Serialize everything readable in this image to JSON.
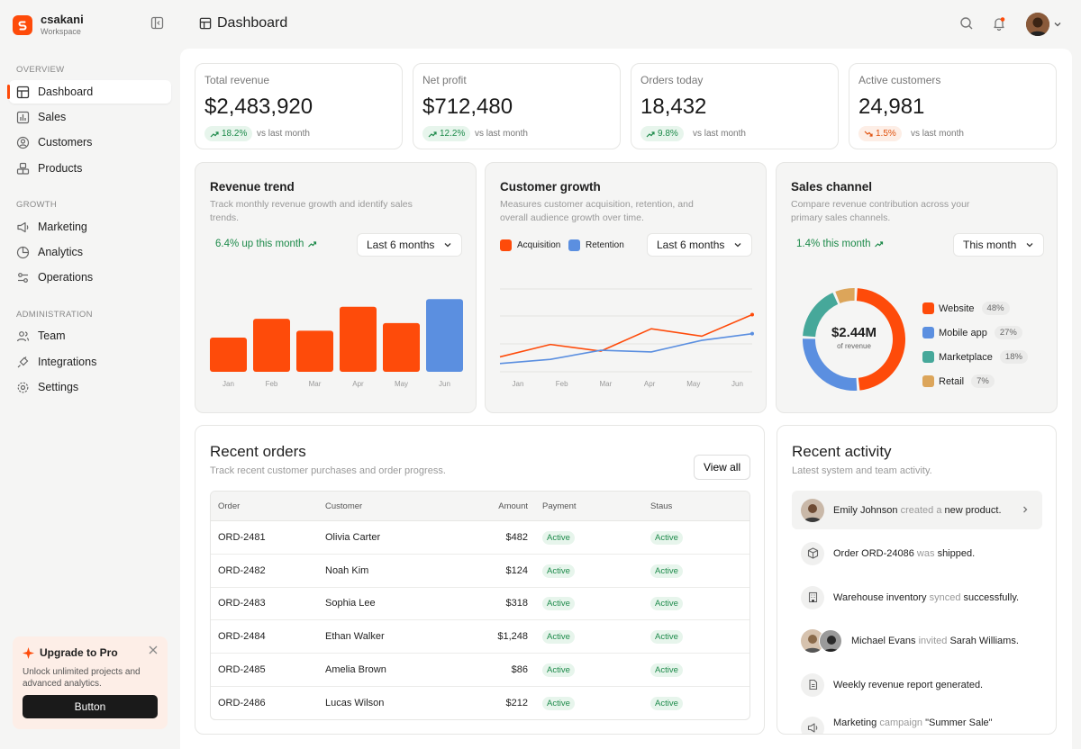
{
  "brand": {
    "name": "csakani",
    "sub": "Workspace"
  },
  "sidebar": {
    "sections": [
      "OVERVIEW",
      "GROWTH",
      "ADMINISTRATION"
    ],
    "items": [
      {
        "label": "Dashboard",
        "icon": "dashboard-icon"
      },
      {
        "label": "Sales",
        "icon": "bar-chart-icon"
      },
      {
        "label": "Customers",
        "icon": "user-circle-icon"
      },
      {
        "label": "Products",
        "icon": "boxes-icon"
      },
      {
        "label": "Marketing",
        "icon": "megaphone-icon"
      },
      {
        "label": "Analytics",
        "icon": "pie-icon"
      },
      {
        "label": "Operations",
        "icon": "sliders-icon"
      },
      {
        "label": "Team",
        "icon": "users-icon"
      },
      {
        "label": "Integrations",
        "icon": "plug-icon"
      },
      {
        "label": "Settings",
        "icon": "gear-icon"
      }
    ]
  },
  "upgrade": {
    "title": "Upgrade to Pro",
    "desc": "Unlock unlimited projects and advanced analytics.",
    "button": "Button"
  },
  "header": {
    "title": "Dashboard"
  },
  "kpis": [
    {
      "label": "Total revenue",
      "value": "$2,483,920",
      "change": "18.2%",
      "trend": "up",
      "vs": "vs last month"
    },
    {
      "label": "Net profit",
      "value": "$712,480",
      "change": "12.2%",
      "trend": "up",
      "vs": "vs last month"
    },
    {
      "label": "Orders today",
      "value": "18,432",
      "change": "9.8%",
      "trend": "up",
      "vs": "vs last month"
    },
    {
      "label": "Active customers",
      "value": "24,981",
      "change": "1.5%",
      "trend": "down",
      "vs": "vs last month"
    }
  ],
  "revenue": {
    "title": "Revenue trend",
    "desc": "Track monthly revenue growth and identify sales trends.",
    "stat": "6.4% up this month",
    "range": "Last 6 months"
  },
  "growth": {
    "title": "Customer growth",
    "desc": "Measures customer acquisition, retention, and overall audience growth over time.",
    "range": "Last 6 months"
  },
  "channel": {
    "title": "Sales channel",
    "desc": "Compare revenue contribution across your primary sales channels.",
    "stat": "1.4% this month",
    "range": "This month",
    "center_value": "$2.44M",
    "center_label": "of revenue"
  },
  "chart_data": [
    {
      "type": "bar",
      "categories": [
        "Jan",
        "Feb",
        "Mar",
        "Apr",
        "May",
        "Jun"
      ],
      "values": [
        40,
        62,
        48,
        76,
        57,
        85
      ],
      "colors": [
        "#fe4b0a",
        "#fe4b0a",
        "#fe4b0a",
        "#fe4b0a",
        "#fe4b0a",
        "#5b8fe0"
      ],
      "ylim": [
        0,
        100
      ]
    },
    {
      "type": "line",
      "x": [
        "Jan",
        "Feb",
        "Mar",
        "Apr",
        "May",
        "Jun"
      ],
      "series": [
        {
          "name": "Acquisition",
          "color": "#fe4b0a",
          "values": [
            18,
            33,
            25,
            52,
            43,
            69
          ]
        },
        {
          "name": "Retention",
          "color": "#5b8fe0",
          "values": [
            10,
            15,
            26,
            24,
            38,
            46
          ]
        }
      ],
      "ylim": [
        0,
        100
      ]
    },
    {
      "type": "pie",
      "labels": [
        "Website",
        "Mobile app",
        "Marketplace",
        "Retail"
      ],
      "values": [
        48,
        27,
        18,
        7
      ],
      "colors": [
        "#fe4b0a",
        "#5b8fe0",
        "#46a89a",
        "#dca55a"
      ]
    }
  ],
  "orders": {
    "title": "Recent orders",
    "desc": "Track recent customer purchases and order progress.",
    "view_all": "View all",
    "columns": [
      "Order",
      "Customer",
      "Amount",
      "Payment",
      "Staus"
    ],
    "rows": [
      {
        "order": "ORD-2481",
        "customer": "Olivia Carter",
        "amount": "$482",
        "payment": "Active",
        "status": "Active"
      },
      {
        "order": "ORD-2482",
        "customer": "Noah Kim",
        "amount": "$124",
        "payment": "Active",
        "status": "Active"
      },
      {
        "order": "ORD-2483",
        "customer": "Sophia Lee",
        "amount": "$318",
        "payment": "Active",
        "status": "Active"
      },
      {
        "order": "ORD-2484",
        "customer": "Ethan Walker",
        "amount": "$1,248",
        "payment": "Active",
        "status": "Active"
      },
      {
        "order": "ORD-2485",
        "customer": "Amelia Brown",
        "amount": "$86",
        "payment": "Active",
        "status": "Active"
      },
      {
        "order": "ORD-2486",
        "customer": "Lucas Wilson",
        "amount": "$212",
        "payment": "Active",
        "status": "Active"
      }
    ]
  },
  "activity": {
    "title": "Recent activity",
    "desc": "Latest system and team activity.",
    "items": [
      {
        "a": "Emily Johnson",
        "b": " created a ",
        "c": "new product."
      },
      {
        "a": "Order ORD-24086",
        "b": " was ",
        "c": "shipped."
      },
      {
        "a": "Warehouse inventory",
        "b": " synced ",
        "c": "successfully."
      },
      {
        "a": "Michael Evans",
        "b": " invited ",
        "c": "Sarah Williams."
      },
      {
        "a": "Weekly revenue report generated.",
        "b": "",
        "c": ""
      },
      {
        "a": "Marketing",
        "b": " campaign ",
        "c": "\"Summer Sale\""
      }
    ]
  }
}
